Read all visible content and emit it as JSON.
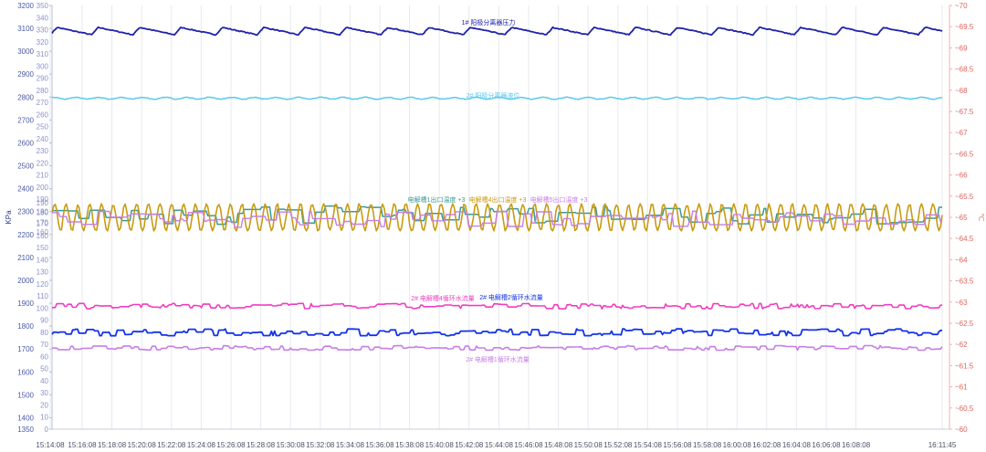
{
  "chart_data": {
    "type": "line",
    "title": "",
    "ylabel_left": "KPa",
    "ylabel_right": "℃",
    "grid": true,
    "legend": "inline labels",
    "y_axes": {
      "outer_left": {
        "ticks": [
          "3200",
          "3100",
          "3000",
          "2900",
          "2800",
          "2700",
          "2600",
          "2500",
          "2400",
          "2300",
          "2200",
          "2100",
          "2000",
          "1900",
          "1800",
          "1700",
          "1600",
          "1500",
          "1400",
          "1350"
        ],
        "range": [
          1350,
          3200
        ]
      },
      "mid_left": {
        "ticks": [
          "350",
          "340",
          "330",
          "320",
          "310",
          "300",
          "290",
          "280",
          "270",
          "260",
          "250",
          "240",
          "230",
          "220",
          "210",
          "200",
          "190",
          "180",
          "170",
          "160",
          "150",
          "140",
          "130",
          "120",
          "110",
          "100",
          "90",
          "80",
          "70",
          "60",
          "50",
          "40",
          "30",
          "20",
          "10",
          "0"
        ],
        "range": [
          0,
          350
        ]
      },
      "inner_left": {
        "ticks": [
          "190",
          "180",
          "170",
          "160"
        ],
        "range": [
          160,
          190
        ]
      },
      "right": {
        "ticks": [
          "70",
          "69.5",
          "69",
          "68.5",
          "68",
          "67.5",
          "67",
          "66.5",
          "66",
          "65.5",
          "65",
          "64.5",
          "64",
          "63.5",
          "63",
          "62.5",
          "62",
          "61.5",
          "61",
          "60.5",
          "60"
        ],
        "range": [
          60,
          70
        ]
      }
    },
    "x": [
      "15:14:08",
      "15:16:08",
      "15:18:08",
      "15:20:08",
      "15:22:08",
      "15:24:08",
      "15:26:08",
      "15:28:08",
      "15:30:08",
      "15:32:08",
      "15:34:08",
      "15:36:08",
      "15:38:08",
      "15:40:08",
      "15:42:08",
      "15:44:08",
      "15:46:08",
      "15:48:08",
      "15:50:08",
      "15:52:08",
      "15:54:08",
      "15:56:08",
      "15:58:08",
      "16:00:08",
      "16:02:08",
      "16:04:08",
      "16:06:08",
      "16:08:08",
      "16:11:45"
    ],
    "series": [
      {
        "name": "1# 阳极分离器压力",
        "color": "#1e22a8",
        "axis": "KPa",
        "value": 3085,
        "pattern": "sawtooth",
        "amplitude": 24,
        "period": 26,
        "width": 1.8,
        "label_pos": [
          535,
          27
        ]
      },
      {
        "name": "2# 阳极分离器液位",
        "color": "#5bc8ee",
        "axis": "KPa",
        "value": 2795,
        "pattern": "wobble",
        "amplitude": 4,
        "period": 14,
        "width": 1.5,
        "label_pos": [
          540,
          107
        ]
      },
      {
        "name": "电解槽1出口温度",
        "color": "#3a9a96",
        "axis": "℃",
        "value": 65.05,
        "pattern": "square",
        "amplitude": 0.22,
        "period": 10,
        "width": 1.5,
        "label_pos": null
      },
      {
        "name": "电解槽4出口温度",
        "color": "#c99a12",
        "axis": "℃",
        "value": 65.0,
        "pattern": "wave",
        "amplitude": 0.32,
        "period": 7,
        "width": 1.6,
        "label_pos": null
      },
      {
        "name": "电解槽5出口温度",
        "color": "#c77ee6",
        "axis": "℃",
        "value": 64.95,
        "pattern": "square",
        "amplitude": 0.2,
        "period": 9,
        "width": 1.4,
        "label_pos": null
      },
      {
        "name": "2# 电解槽4循环水流量",
        "color": "#f03cc0",
        "axis": "KPa",
        "value": 1887,
        "pattern": "noise",
        "amplitude": 12,
        "period": 5,
        "width": 1.6,
        "label_pos": null
      },
      {
        "name": "2# 电解槽2循环水流量",
        "color": "#1433e8",
        "axis": "KPa",
        "value": 1773,
        "pattern": "noise",
        "amplitude": 15,
        "period": 5,
        "width": 1.8,
        "label_pos": null
      },
      {
        "name": "2# 电解槽1循环水流量",
        "color": "#c77ee6",
        "axis": "KPa",
        "value": 1705,
        "pattern": "noise",
        "amplitude": 10,
        "period": 5,
        "width": 1.6,
        "label_pos": [
          545,
          396
        ]
      }
    ],
    "labels": [
      {
        "text": "电解槽1出口温度",
        "suffix": "+3",
        "color": "#3a9a96",
        "pos": [
          478,
          221
        ]
      },
      {
        "text": "电解槽4出口温度",
        "suffix": "+3",
        "color": "#c99a12",
        "pos": [
          545,
          221
        ]
      },
      {
        "text": "电解槽5出口温度",
        "suffix": "+3",
        "color": "#c77ee6",
        "pos": [
          612,
          221
        ]
      },
      {
        "text": "2# 电解槽4循环水流量",
        "color": "#f03cc0",
        "pos": [
          485,
          329
        ]
      },
      {
        "text": "2# 电解槽2循环水流量",
        "color": "#1433e8",
        "pos": [
          560,
          328
        ]
      }
    ]
  }
}
